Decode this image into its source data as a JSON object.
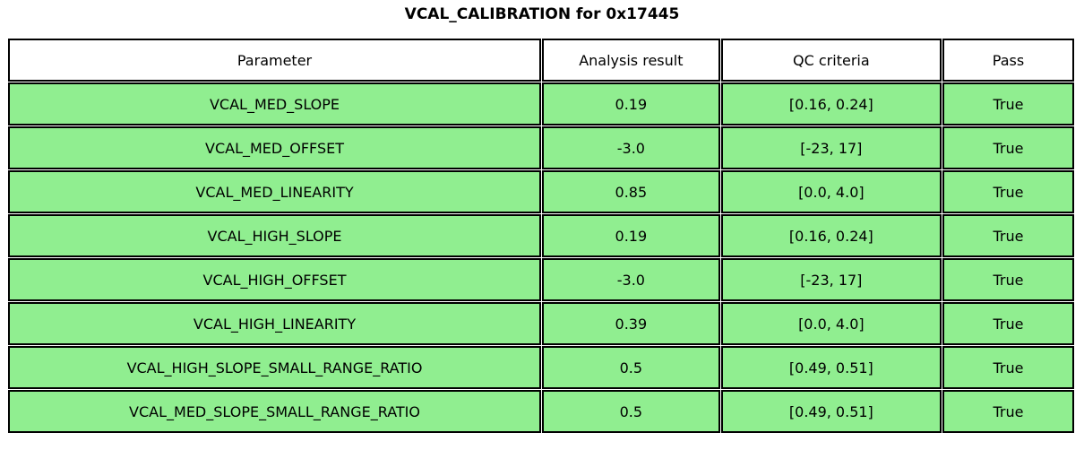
{
  "chart_data": {
    "type": "table",
    "title": "VCAL_CALIBRATION for 0x17445",
    "columns": [
      "Parameter",
      "Analysis result",
      "QC criteria",
      "Pass"
    ],
    "rows": [
      [
        "VCAL_MED_SLOPE",
        "0.19",
        "[0.16, 0.24]",
        "True"
      ],
      [
        "VCAL_MED_OFFSET",
        "-3.0",
        "[-23, 17]",
        "True"
      ],
      [
        "VCAL_MED_LINEARITY",
        "0.85",
        "[0.0, 4.0]",
        "True"
      ],
      [
        "VCAL_HIGH_SLOPE",
        "0.19",
        "[0.16, 0.24]",
        "True"
      ],
      [
        "VCAL_HIGH_OFFSET",
        "-3.0",
        "[-23, 17]",
        "True"
      ],
      [
        "VCAL_HIGH_LINEARITY",
        "0.39",
        "[0.0, 4.0]",
        "True"
      ],
      [
        "VCAL_HIGH_SLOPE_SMALL_RANGE_RATIO",
        "0.5",
        "[0.49, 0.51]",
        "True"
      ],
      [
        "VCAL_MED_SLOPE_SMALL_RANGE_RATIO",
        "0.5",
        "[0.49, 0.51]",
        "True"
      ]
    ],
    "layout": {
      "legend": "none",
      "grid": "cell-borders",
      "header_background": "#FFFFFF",
      "pass_row_background": "#90EE90",
      "border_color": "#000000",
      "text_color": "#000000"
    }
  }
}
